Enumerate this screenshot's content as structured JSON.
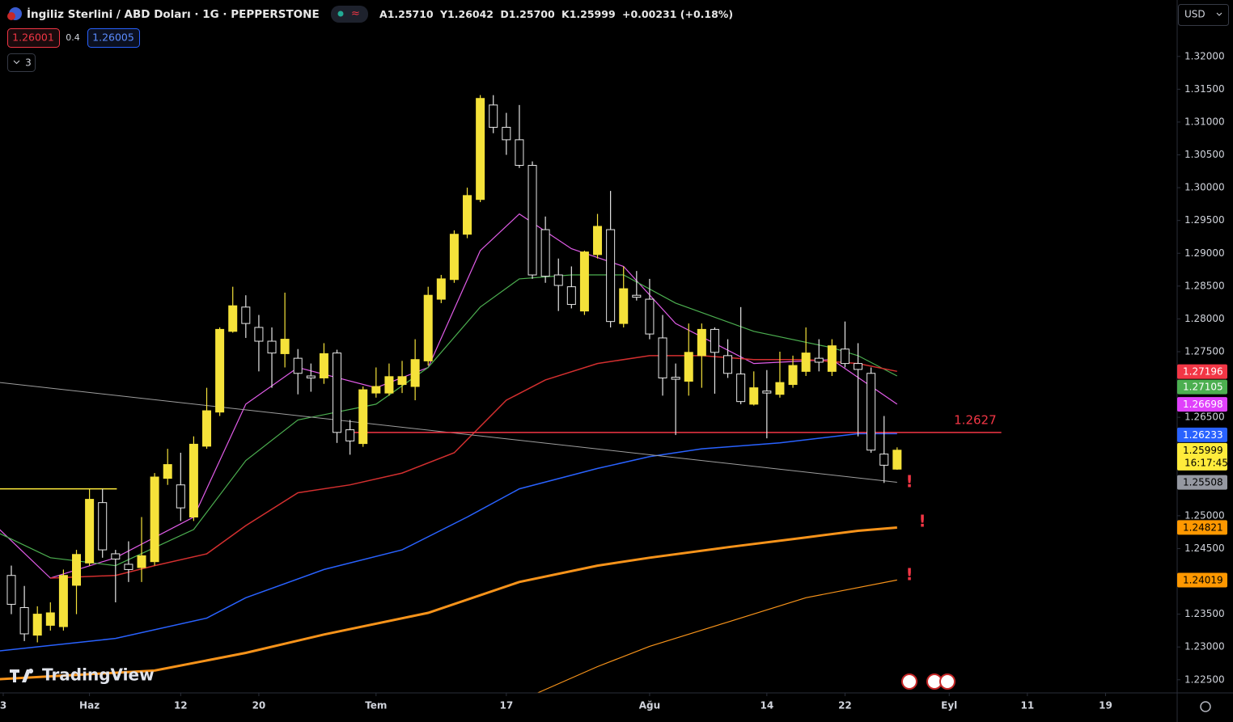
{
  "header": {
    "symbol": "İngiliz Sterlini / ABD Doları · 1G · PEPPERSTONE",
    "ohlc": [
      [
        "A",
        "1.25710"
      ],
      [
        "Y",
        "1.26042"
      ],
      [
        "D",
        "1.25700"
      ],
      [
        "K",
        "1.25999"
      ]
    ],
    "change": "+0.00231 (+0.18%)",
    "bid": "1.26001",
    "spread": "0.4",
    "ask": "1.26005",
    "indicators": "3",
    "currency": "USD",
    "logo": "TradingView"
  },
  "chart_data": {
    "type": "candlestick",
    "up_color": "#f5e23a",
    "down_color": "#000000",
    "down_border": "#e6e6e6",
    "ohlc": [
      [
        1.2409,
        1.2424,
        1.235,
        1.2365
      ],
      [
        1.236,
        1.2393,
        1.2309,
        1.232
      ],
      [
        1.2318,
        1.2362,
        1.2307,
        1.235
      ],
      [
        1.2333,
        1.2368,
        1.2325,
        1.2352
      ],
      [
        1.2331,
        1.2418,
        1.2325,
        1.2409
      ],
      [
        1.2394,
        1.2448,
        1.235,
        1.2441
      ],
      [
        1.2428,
        1.2541,
        1.2424,
        1.2525
      ],
      [
        1.252,
        1.2541,
        1.2436,
        1.2448
      ],
      [
        1.2442,
        1.2448,
        1.2368,
        1.2434
      ],
      [
        1.2426,
        1.2461,
        1.2399,
        1.2418
      ],
      [
        1.2421,
        1.2498,
        1.2399,
        1.2439
      ],
      [
        1.243,
        1.2565,
        1.2424,
        1.2559
      ],
      [
        1.2557,
        1.2602,
        1.2547,
        1.2578
      ],
      [
        1.2547,
        1.2596,
        1.2492,
        1.2512
      ],
      [
        1.2498,
        1.2621,
        1.2492,
        1.2609
      ],
      [
        1.2606,
        1.2695,
        1.2602,
        1.266
      ],
      [
        1.2658,
        1.2787,
        1.2652,
        1.2784
      ],
      [
        1.2781,
        1.2849,
        1.2779,
        1.282
      ],
      [
        1.2818,
        1.2836,
        1.2771,
        1.2793
      ],
      [
        1.2787,
        1.2806,
        1.272,
        1.2766
      ],
      [
        1.2766,
        1.2787,
        1.2695,
        1.2748
      ],
      [
        1.2747,
        1.284,
        1.2726,
        1.2769
      ],
      [
        1.274,
        1.2754,
        1.2685,
        1.2717
      ],
      [
        1.2713,
        1.2732,
        1.2689,
        1.271
      ],
      [
        1.271,
        1.2763,
        1.2701,
        1.2747
      ],
      [
        1.2748,
        1.2753,
        1.2611,
        1.2627
      ],
      [
        1.2631,
        1.2646,
        1.2593,
        1.2614
      ],
      [
        1.261,
        1.2697,
        1.2605,
        1.2692
      ],
      [
        1.2687,
        1.2726,
        1.268,
        1.2697
      ],
      [
        1.2687,
        1.2732,
        1.2683,
        1.2712
      ],
      [
        1.27,
        1.2736,
        1.2687,
        1.2712
      ],
      [
        1.2697,
        1.2769,
        1.2676,
        1.2738
      ],
      [
        1.2736,
        1.2849,
        1.2729,
        1.2836
      ],
      [
        1.283,
        1.2867,
        1.2824,
        1.2861
      ],
      [
        1.286,
        1.2935,
        1.2855,
        1.2929
      ],
      [
        1.2929,
        1.3,
        1.2923,
        1.2988
      ],
      [
        1.2982,
        1.3141,
        1.2978,
        1.3136
      ],
      [
        1.3126,
        1.3141,
        1.3083,
        1.3092
      ],
      [
        1.3092,
        1.3114,
        1.305,
        1.3073
      ],
      [
        1.3073,
        1.3126,
        1.303,
        1.3034
      ],
      [
        1.3034,
        1.304,
        1.2861,
        1.2867
      ],
      [
        1.2936,
        1.2956,
        1.2855,
        1.2865
      ],
      [
        1.2867,
        1.2892,
        1.2812,
        1.2851
      ],
      [
        1.2849,
        1.288,
        1.2816,
        1.2822
      ],
      [
        1.2812,
        1.2904,
        1.2806,
        1.2902
      ],
      [
        1.2898,
        1.296,
        1.2892,
        1.2941
      ],
      [
        1.2936,
        1.2995,
        1.2787,
        1.2796
      ],
      [
        1.2793,
        1.288,
        1.2787,
        1.2846
      ],
      [
        1.2836,
        1.2873,
        1.2828,
        1.2833
      ],
      [
        1.283,
        1.2861,
        1.2769,
        1.2777
      ],
      [
        1.2771,
        1.2806,
        1.2683,
        1.271
      ],
      [
        1.2711,
        1.2732,
        1.2623,
        1.2708
      ],
      [
        1.2705,
        1.2793,
        1.2683,
        1.2749
      ],
      [
        1.2744,
        1.2793,
        1.2695,
        1.2784
      ],
      [
        1.2784,
        1.2787,
        1.2686,
        1.2749
      ],
      [
        1.2744,
        1.2769,
        1.271,
        1.2717
      ],
      [
        1.2716,
        1.2818,
        1.267,
        1.2674
      ],
      [
        1.267,
        1.272,
        1.2668,
        1.2695
      ],
      [
        1.269,
        1.2722,
        1.2618,
        1.2687
      ],
      [
        1.2685,
        1.275,
        1.268,
        1.2703
      ],
      [
        1.27,
        1.2744,
        1.2695,
        1.2729
      ],
      [
        1.272,
        1.2787,
        1.2713,
        1.2748
      ],
      [
        1.274,
        1.2769,
        1.272,
        1.2734
      ],
      [
        1.272,
        1.2769,
        1.2713,
        1.2759
      ],
      [
        1.2754,
        1.2796,
        1.2726,
        1.2732
      ],
      [
        1.2732,
        1.2763,
        1.2621,
        1.2723
      ],
      [
        1.2717,
        1.2726,
        1.2596,
        1.26
      ],
      [
        1.2594,
        1.2652,
        1.255,
        1.2577
      ],
      [
        1.2571,
        1.26042,
        1.257,
        1.25999
      ]
    ],
    "lines": [
      {
        "color": "#e15ce8",
        "width": 1.2,
        "x": [
          -0.9,
          3,
          8,
          14,
          18,
          22,
          28,
          32,
          36,
          39,
          43,
          47,
          51,
          57,
          63,
          68
        ],
        "values": [
          1.2479,
          1.2405,
          1.2436,
          1.2498,
          1.267,
          1.2726,
          1.2695,
          1.2726,
          1.2904,
          1.296,
          1.2907,
          1.288,
          1.2793,
          1.2732,
          1.2738,
          1.267
        ]
      },
      {
        "color": "#4caf50",
        "width": 1.2,
        "x": [
          -0.9,
          3,
          8,
          14,
          18,
          22,
          28,
          32,
          36,
          39,
          43,
          47,
          51,
          57,
          63,
          65,
          68
        ],
        "values": [
          1.2473,
          1.2436,
          1.2424,
          1.2479,
          1.2584,
          1.2646,
          1.267,
          1.2726,
          1.2818,
          1.2861,
          1.2867,
          1.2867,
          1.2824,
          1.2781,
          1.2756,
          1.2744,
          1.2713
        ]
      },
      {
        "color": "#d32f2f",
        "width": 1.5,
        "x": [
          3,
          8,
          11,
          15,
          18,
          22,
          26,
          30,
          34,
          38,
          41,
          45,
          49,
          53,
          57,
          61,
          65,
          68
        ],
        "values": [
          1.2405,
          1.2409,
          1.2424,
          1.2442,
          1.2485,
          1.2535,
          1.2547,
          1.2565,
          1.2596,
          1.2676,
          1.2707,
          1.2732,
          1.2744,
          1.2744,
          1.2738,
          1.2738,
          1.2732,
          1.272
        ]
      },
      {
        "color": "#2962ff",
        "width": 1.5,
        "x": [
          -0.9,
          8,
          15,
          18,
          24,
          30,
          35,
          39,
          45,
          49,
          53,
          59,
          65,
          68
        ],
        "values": [
          1.2294,
          1.2313,
          1.2344,
          1.2375,
          1.2418,
          1.2448,
          1.2498,
          1.2541,
          1.2572,
          1.259,
          1.2602,
          1.2611,
          1.2625,
          1.2625
        ]
      },
      {
        "color": "#f7931a",
        "width": 3,
        "x": [
          -0.9,
          11,
          18,
          24,
          32,
          39,
          45,
          49,
          55,
          61,
          65,
          68
        ],
        "values": [
          1.2251,
          1.2264,
          1.2291,
          1.2319,
          1.2352,
          1.2399,
          1.2424,
          1.2436,
          1.2452,
          1.2467,
          1.2477,
          1.2482
        ]
      },
      {
        "color": "#f7931a",
        "width": 1.2,
        "x": [
          40.4,
          45,
          49,
          55,
          61,
          68
        ],
        "values": [
          1.223,
          1.227,
          1.2301,
          1.2338,
          1.2375,
          1.2402
        ]
      },
      {
        "color": "#9e9e9e",
        "width": 1,
        "x": [
          -0.9,
          68
        ],
        "values": [
          1.2703,
          1.2551
        ]
      }
    ],
    "hlines": [
      {
        "value": 1.2627,
        "x": [
          25.8,
          76
        ],
        "color": "#f23645",
        "labeled": true
      },
      {
        "value": 1.2541,
        "x": [
          -0.9,
          8.1
        ],
        "color": "#ffeb3b",
        "labeled": false
      }
    ],
    "xlim": [
      -0.87,
      89.5
    ],
    "ylim": [
      1.223,
      1.3286
    ],
    "xticks": [
      {
        "value": -0.8,
        "label": "3"
      },
      {
        "value": 6,
        "label": "Haz"
      },
      {
        "value": 13,
        "label": "12"
      },
      {
        "value": 19,
        "label": "20"
      },
      {
        "value": 28,
        "label": "Tem"
      },
      {
        "value": 38,
        "label": "17"
      },
      {
        "value": 49,
        "label": "Ağu"
      },
      {
        "value": 58,
        "label": "14"
      },
      {
        "value": 64,
        "label": "22"
      },
      {
        "value": 72,
        "label": "Eyl"
      },
      {
        "value": 78,
        "label": "11"
      },
      {
        "value": 84,
        "label": "19"
      }
    ],
    "yticks": [
      {
        "value": 1.32,
        "label": "1.32000"
      },
      {
        "value": 1.315,
        "label": "1.31500"
      },
      {
        "value": 1.31,
        "label": "1.31000"
      },
      {
        "value": 1.305,
        "label": "1.30500"
      },
      {
        "value": 1.3,
        "label": "1.30000"
      },
      {
        "value": 1.295,
        "label": "1.29500"
      },
      {
        "value": 1.29,
        "label": "1.29000"
      },
      {
        "value": 1.285,
        "label": "1.28500"
      },
      {
        "value": 1.28,
        "label": "1.28000"
      },
      {
        "value": 1.275,
        "label": "1.27500"
      },
      {
        "value": 1.265,
        "label": "1.26500"
      },
      {
        "value": 1.25,
        "label": "1.25000"
      },
      {
        "value": 1.245,
        "label": "1.24500"
      },
      {
        "value": 1.235,
        "label": "1.23500"
      },
      {
        "value": 1.23,
        "label": "1.23000"
      },
      {
        "value": 1.225,
        "label": "1.22500"
      }
    ],
    "price_labels": [
      {
        "value": 1.27196,
        "color": "#f23645",
        "text_color": "#ffffff"
      },
      {
        "value": 1.27105,
        "color": "#4caf50",
        "text_color": "#ffffff"
      },
      {
        "value": 1.26698,
        "color": "#e040fb",
        "text_color": "#ffffff"
      },
      {
        "value": 1.26233,
        "color": "#2962ff",
        "text_color": "#ffffff"
      },
      {
        "value": 1.25999,
        "color": "#ffeb3b",
        "text_color": "#000000",
        "countdown": "16:17:45"
      },
      {
        "value": 1.25508,
        "color": "#9598a1",
        "text_color": "#000000"
      },
      {
        "value": 1.24821,
        "color": "#ff9800",
        "text_color": "#000000"
      },
      {
        "value": 1.24019,
        "color": "#ff9800",
        "text_color": "#000000"
      }
    ]
  }
}
